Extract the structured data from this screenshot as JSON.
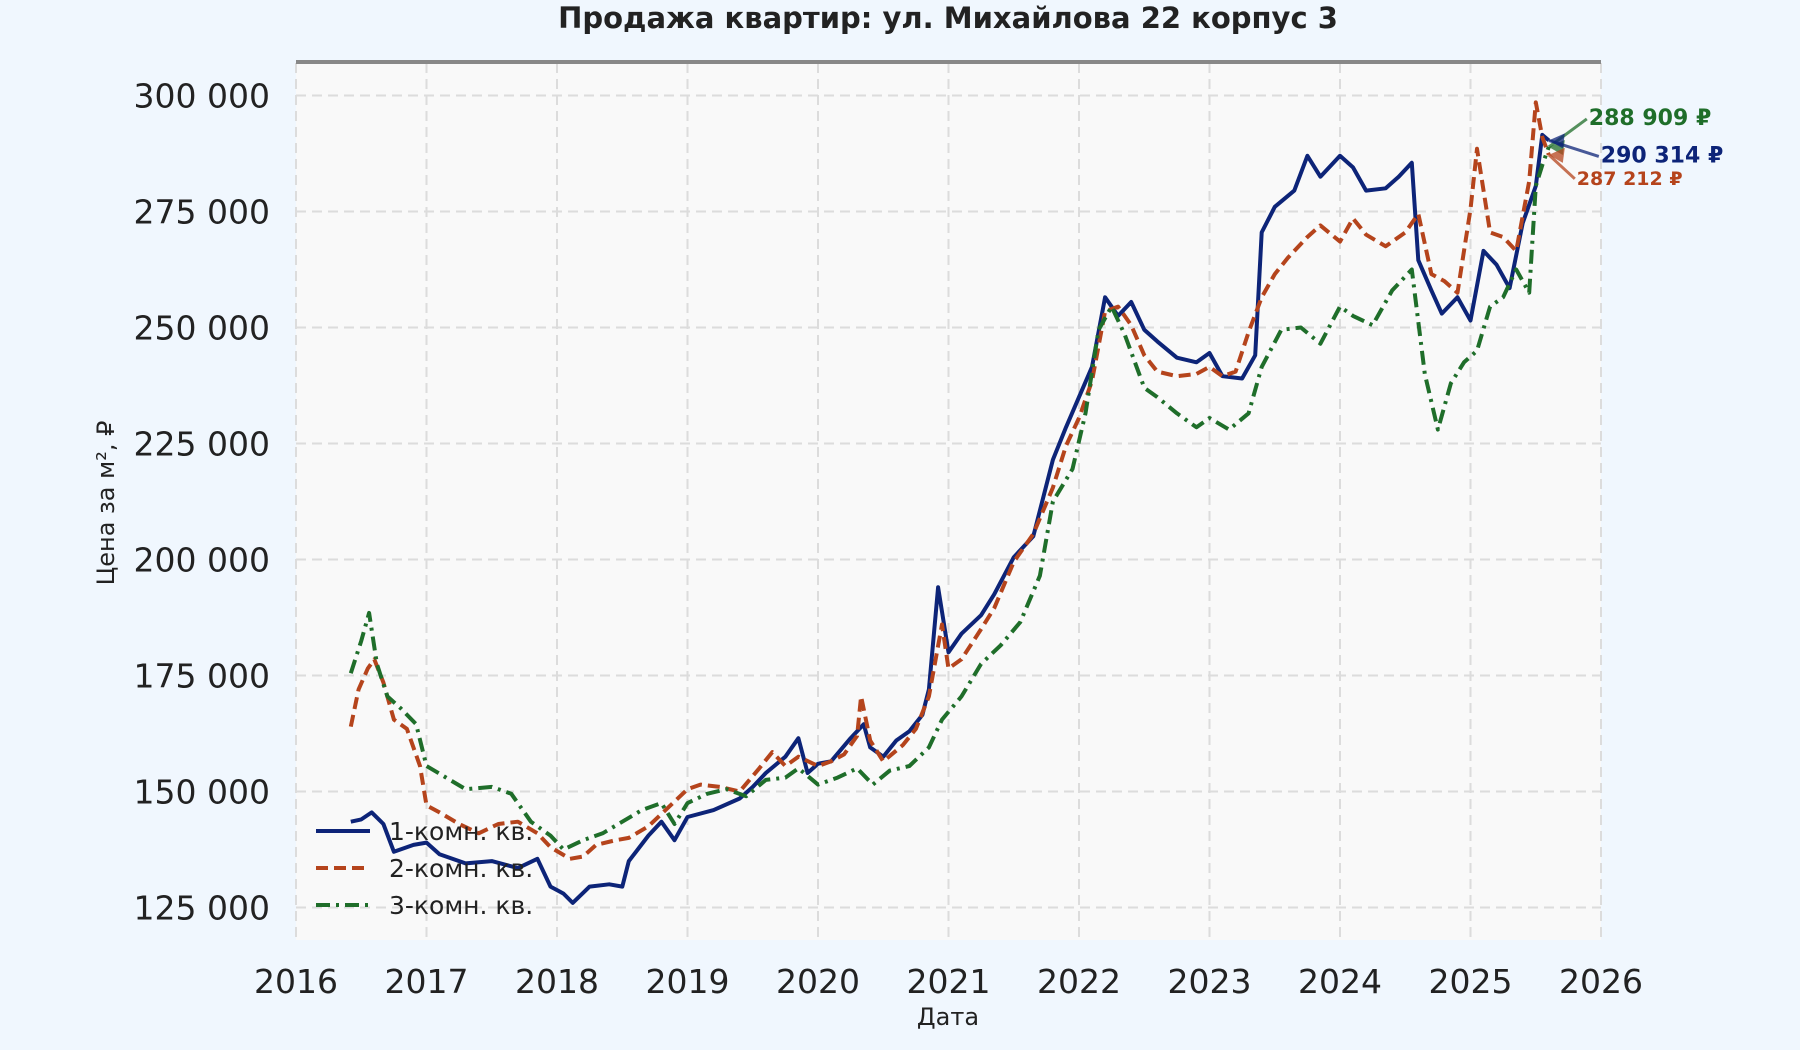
{
  "chart_data": {
    "type": "line",
    "title": "Продажа квартир: ул. Михайлова 22 корпус 3",
    "xlabel": "Дата",
    "ylabel": "Цена за м², ₽",
    "xlim": [
      2016,
      2026
    ],
    "ylim": [
      118000,
      307000
    ],
    "x_ticks": [
      2016,
      2017,
      2018,
      2019,
      2020,
      2021,
      2022,
      2023,
      2024,
      2025,
      2026
    ],
    "y_ticks": [
      {
        "value": 125000,
        "label": "125 000"
      },
      {
        "value": 150000,
        "label": "150 000"
      },
      {
        "value": 175000,
        "label": "175 000"
      },
      {
        "value": 200000,
        "label": "200 000"
      },
      {
        "value": 225000,
        "label": "225 000"
      },
      {
        "value": 250000,
        "label": "250 000"
      },
      {
        "value": 275000,
        "label": "275 000"
      },
      {
        "value": 300000,
        "label": "300 000"
      }
    ],
    "grid": true,
    "legend_position": "lower-left",
    "series": [
      {
        "name": "1-комн. кв.",
        "color": "#0d2478",
        "style": "solid",
        "points": [
          [
            2016.42,
            143500
          ],
          [
            2016.5,
            144000
          ],
          [
            2016.58,
            145500
          ],
          [
            2016.67,
            143000
          ],
          [
            2016.75,
            137000
          ],
          [
            2016.9,
            138500
          ],
          [
            2017.0,
            139000
          ],
          [
            2017.1,
            136500
          ],
          [
            2017.3,
            134500
          ],
          [
            2017.5,
            135000
          ],
          [
            2017.7,
            133500
          ],
          [
            2017.85,
            135500
          ],
          [
            2017.95,
            129500
          ],
          [
            2018.05,
            128000
          ],
          [
            2018.12,
            126000
          ],
          [
            2018.25,
            129500
          ],
          [
            2018.4,
            130000
          ],
          [
            2018.5,
            129500
          ],
          [
            2018.55,
            135000
          ],
          [
            2018.7,
            140500
          ],
          [
            2018.8,
            143500
          ],
          [
            2018.9,
            139500
          ],
          [
            2019.0,
            144500
          ],
          [
            2019.2,
            146000
          ],
          [
            2019.4,
            148500
          ],
          [
            2019.5,
            151000
          ],
          [
            2019.6,
            154000
          ],
          [
            2019.75,
            157500
          ],
          [
            2019.85,
            161500
          ],
          [
            2019.92,
            154000
          ],
          [
            2020.0,
            156000
          ],
          [
            2020.1,
            156500
          ],
          [
            2020.25,
            161500
          ],
          [
            2020.35,
            164500
          ],
          [
            2020.4,
            159500
          ],
          [
            2020.5,
            157500
          ],
          [
            2020.6,
            161000
          ],
          [
            2020.7,
            163000
          ],
          [
            2020.8,
            166500
          ],
          [
            2020.85,
            172000
          ],
          [
            2020.92,
            194000
          ],
          [
            2021.0,
            180000
          ],
          [
            2021.1,
            184000
          ],
          [
            2021.25,
            188000
          ],
          [
            2021.35,
            192500
          ],
          [
            2021.5,
            200500
          ],
          [
            2021.65,
            205000
          ],
          [
            2021.8,
            221500
          ],
          [
            2021.9,
            228500
          ],
          [
            2022.0,
            235000
          ],
          [
            2022.1,
            241500
          ],
          [
            2022.2,
            256500
          ],
          [
            2022.3,
            252500
          ],
          [
            2022.4,
            255500
          ],
          [
            2022.5,
            249500
          ],
          [
            2022.6,
            247000
          ],
          [
            2022.75,
            243500
          ],
          [
            2022.9,
            242500
          ],
          [
            2023.0,
            244500
          ],
          [
            2023.1,
            239500
          ],
          [
            2023.25,
            239000
          ],
          [
            2023.35,
            244000
          ],
          [
            2023.4,
            270500
          ],
          [
            2023.5,
            276000
          ],
          [
            2023.65,
            279500
          ],
          [
            2023.75,
            287000
          ],
          [
            2023.85,
            282500
          ],
          [
            2024.0,
            287000
          ],
          [
            2024.1,
            284500
          ],
          [
            2024.2,
            279500
          ],
          [
            2024.35,
            280000
          ],
          [
            2024.45,
            282500
          ],
          [
            2024.55,
            285500
          ],
          [
            2024.6,
            264500
          ],
          [
            2024.7,
            258000
          ],
          [
            2024.78,
            253000
          ],
          [
            2024.9,
            256500
          ],
          [
            2025.0,
            251500
          ],
          [
            2025.1,
            266500
          ],
          [
            2025.2,
            263500
          ],
          [
            2025.3,
            258500
          ],
          [
            2025.4,
            272500
          ],
          [
            2025.5,
            280500
          ],
          [
            2025.55,
            291500
          ],
          [
            2025.6,
            290314
          ]
        ]
      },
      {
        "name": "2-комн. кв.",
        "color": "#b5441c",
        "style": "dashed",
        "points": [
          [
            2016.42,
            164000
          ],
          [
            2016.48,
            172000
          ],
          [
            2016.55,
            176500
          ],
          [
            2016.6,
            178500
          ],
          [
            2016.67,
            173500
          ],
          [
            2016.75,
            165500
          ],
          [
            2016.85,
            163500
          ],
          [
            2016.95,
            155500
          ],
          [
            2017.0,
            147000
          ],
          [
            2017.1,
            145500
          ],
          [
            2017.25,
            143000
          ],
          [
            2017.4,
            141000
          ],
          [
            2017.55,
            143000
          ],
          [
            2017.7,
            143500
          ],
          [
            2017.85,
            141000
          ],
          [
            2017.95,
            138000
          ],
          [
            2018.1,
            135500
          ],
          [
            2018.2,
            136000
          ],
          [
            2018.3,
            138500
          ],
          [
            2018.45,
            139500
          ],
          [
            2018.55,
            140000
          ],
          [
            2018.7,
            142500
          ],
          [
            2018.85,
            146500
          ],
          [
            2019.0,
            150500
          ],
          [
            2019.1,
            151500
          ],
          [
            2019.25,
            151000
          ],
          [
            2019.4,
            150000
          ],
          [
            2019.55,
            155000
          ],
          [
            2019.65,
            158500
          ],
          [
            2019.75,
            155500
          ],
          [
            2019.85,
            157500
          ],
          [
            2020.0,
            155500
          ],
          [
            2020.1,
            156500
          ],
          [
            2020.2,
            158000
          ],
          [
            2020.3,
            162000
          ],
          [
            2020.33,
            170500
          ],
          [
            2020.4,
            161000
          ],
          [
            2020.5,
            156500
          ],
          [
            2020.65,
            160000
          ],
          [
            2020.75,
            163500
          ],
          [
            2020.85,
            170500
          ],
          [
            2020.95,
            186000
          ],
          [
            2021.0,
            176500
          ],
          [
            2021.1,
            178500
          ],
          [
            2021.25,
            185000
          ],
          [
            2021.35,
            189500
          ],
          [
            2021.5,
            199500
          ],
          [
            2021.65,
            205500
          ],
          [
            2021.8,
            215500
          ],
          [
            2021.9,
            224500
          ],
          [
            2022.0,
            230500
          ],
          [
            2022.1,
            238500
          ],
          [
            2022.2,
            253500
          ],
          [
            2022.3,
            254500
          ],
          [
            2022.4,
            250500
          ],
          [
            2022.5,
            244000
          ],
          [
            2022.6,
            240500
          ],
          [
            2022.75,
            239500
          ],
          [
            2022.9,
            240000
          ],
          [
            2023.0,
            241500
          ],
          [
            2023.1,
            239500
          ],
          [
            2023.2,
            240500
          ],
          [
            2023.3,
            249000
          ],
          [
            2023.4,
            256500
          ],
          [
            2023.5,
            261500
          ],
          [
            2023.6,
            265000
          ],
          [
            2023.75,
            269500
          ],
          [
            2023.85,
            272000
          ],
          [
            2024.0,
            268500
          ],
          [
            2024.1,
            273500
          ],
          [
            2024.2,
            270000
          ],
          [
            2024.35,
            267500
          ],
          [
            2024.5,
            270500
          ],
          [
            2024.6,
            274500
          ],
          [
            2024.7,
            261500
          ],
          [
            2024.8,
            260000
          ],
          [
            2024.9,
            257500
          ],
          [
            2025.0,
            275500
          ],
          [
            2025.05,
            288500
          ],
          [
            2025.15,
            270500
          ],
          [
            2025.25,
            269500
          ],
          [
            2025.35,
            266500
          ],
          [
            2025.45,
            281500
          ],
          [
            2025.5,
            298500
          ],
          [
            2025.55,
            291000
          ],
          [
            2025.6,
            287212
          ]
        ]
      },
      {
        "name": "3-комн. кв.",
        "color": "#1f6e2a",
        "style": "dashdot",
        "points": [
          [
            2016.42,
            175500
          ],
          [
            2016.5,
            182500
          ],
          [
            2016.56,
            188500
          ],
          [
            2016.62,
            177500
          ],
          [
            2016.7,
            170500
          ],
          [
            2016.8,
            168000
          ],
          [
            2016.92,
            164500
          ],
          [
            2017.0,
            155500
          ],
          [
            2017.15,
            153000
          ],
          [
            2017.3,
            150500
          ],
          [
            2017.5,
            151000
          ],
          [
            2017.65,
            149500
          ],
          [
            2017.8,
            143500
          ],
          [
            2017.95,
            140500
          ],
          [
            2018.05,
            137500
          ],
          [
            2018.2,
            139500
          ],
          [
            2018.35,
            141000
          ],
          [
            2018.5,
            143500
          ],
          [
            2018.65,
            146000
          ],
          [
            2018.8,
            147500
          ],
          [
            2018.9,
            143000
          ],
          [
            2019.0,
            147500
          ],
          [
            2019.15,
            149500
          ],
          [
            2019.3,
            150500
          ],
          [
            2019.45,
            149000
          ],
          [
            2019.6,
            152500
          ],
          [
            2019.75,
            153000
          ],
          [
            2019.85,
            155000
          ],
          [
            2020.0,
            151500
          ],
          [
            2020.15,
            153000
          ],
          [
            2020.3,
            155000
          ],
          [
            2020.42,
            151500
          ],
          [
            2020.55,
            154500
          ],
          [
            2020.7,
            155500
          ],
          [
            2020.85,
            159500
          ],
          [
            2020.95,
            165500
          ],
          [
            2021.1,
            170500
          ],
          [
            2021.25,
            177500
          ],
          [
            2021.4,
            181500
          ],
          [
            2021.55,
            186500
          ],
          [
            2021.7,
            196500
          ],
          [
            2021.8,
            212500
          ],
          [
            2021.95,
            219500
          ],
          [
            2022.05,
            231500
          ],
          [
            2022.15,
            249500
          ],
          [
            2022.25,
            254500
          ],
          [
            2022.35,
            248500
          ],
          [
            2022.5,
            237000
          ],
          [
            2022.6,
            235000
          ],
          [
            2022.75,
            231500
          ],
          [
            2022.9,
            228500
          ],
          [
            2023.0,
            230500
          ],
          [
            2023.15,
            228000
          ],
          [
            2023.3,
            231500
          ],
          [
            2023.4,
            241500
          ],
          [
            2023.55,
            249500
          ],
          [
            2023.7,
            250000
          ],
          [
            2023.85,
            246500
          ],
          [
            2024.0,
            254500
          ],
          [
            2024.1,
            252500
          ],
          [
            2024.25,
            250500
          ],
          [
            2024.4,
            258000
          ],
          [
            2024.55,
            262500
          ],
          [
            2024.65,
            240000
          ],
          [
            2024.75,
            228000
          ],
          [
            2024.85,
            238000
          ],
          [
            2024.95,
            242500
          ],
          [
            2025.05,
            245000
          ],
          [
            2025.15,
            254500
          ],
          [
            2025.25,
            256500
          ],
          [
            2025.35,
            262500
          ],
          [
            2025.45,
            257500
          ],
          [
            2025.5,
            280500
          ],
          [
            2025.55,
            285000
          ],
          [
            2025.6,
            288909
          ]
        ]
      }
    ],
    "annotations": [
      {
        "text": "288 909 ₽",
        "color": "#1f6e2a",
        "x": 2025.6,
        "y": 288909
      },
      {
        "text": "290 314 ₽",
        "color": "#0d2478",
        "x": 2025.6,
        "y": 290314
      },
      {
        "text": "287 212 ₽",
        "color": "#b5441c",
        "x": 2025.6,
        "y": 287212
      }
    ]
  }
}
